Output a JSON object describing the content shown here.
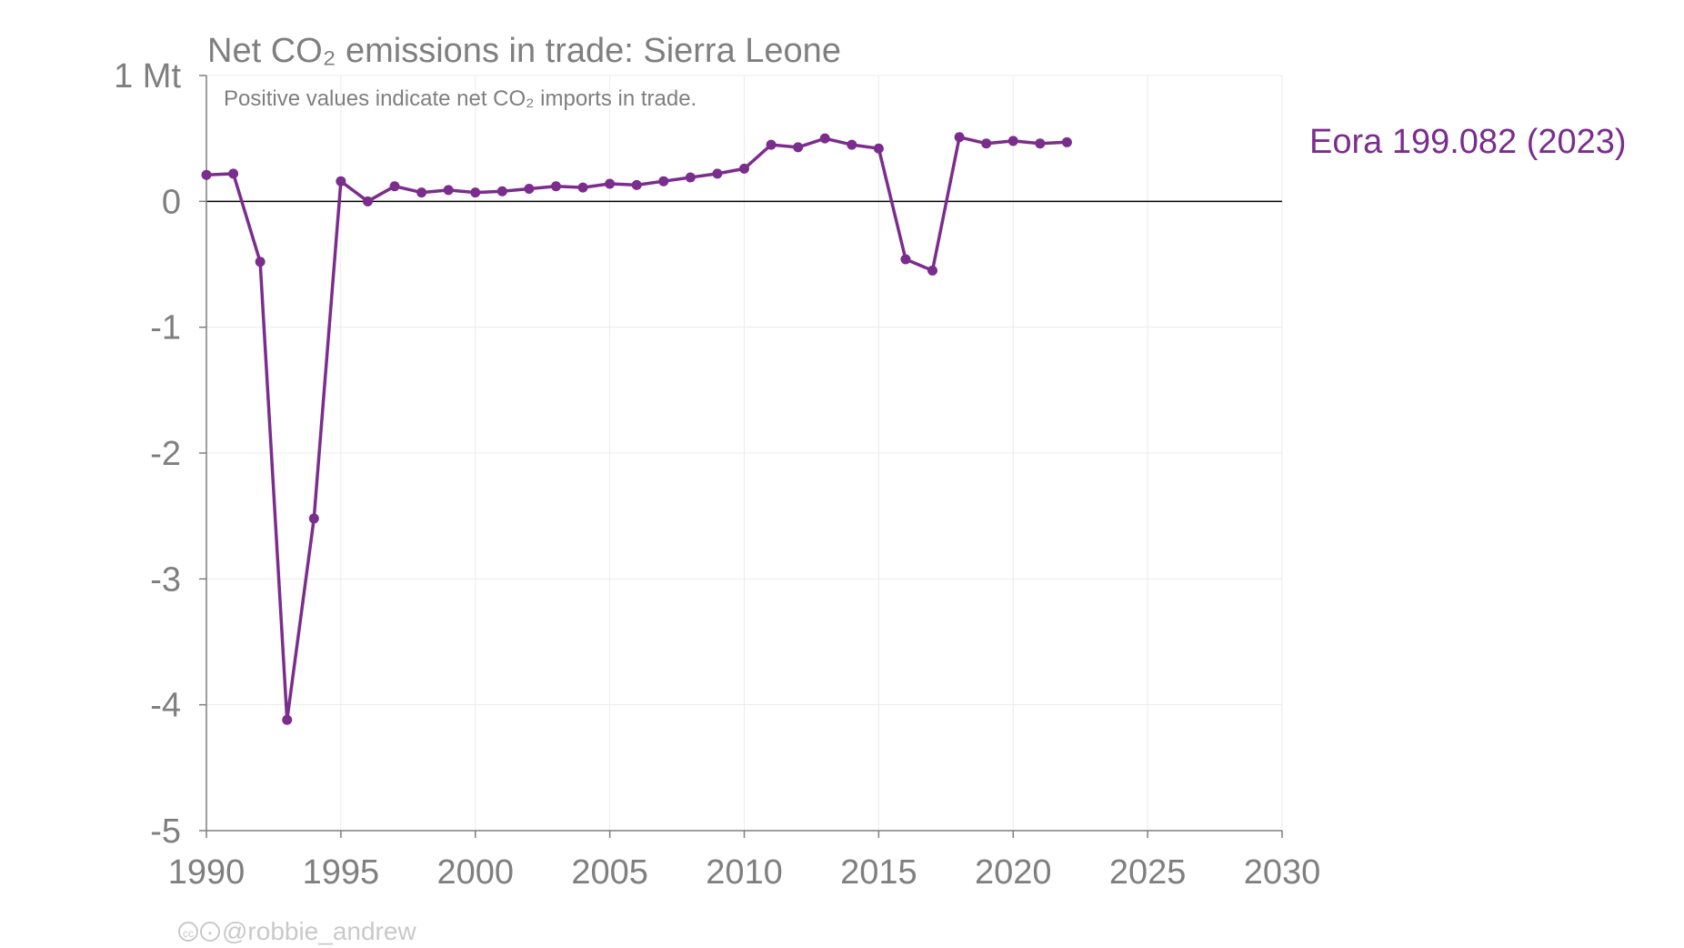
{
  "chart_data": {
    "type": "line",
    "title": "Net CO₂ emissions in trade: Sierra Leone",
    "subtitle": "Positive values indicate net CO₂ imports in trade.",
    "ylim": [
      -5,
      1
    ],
    "xlim": [
      1990,
      2030
    ],
    "y_ticks": [
      "1 Mt",
      "0",
      "-1",
      "-2",
      "-3",
      "-4",
      "-5"
    ],
    "x_ticks": [
      "1990",
      "1995",
      "2000",
      "2005",
      "2010",
      "2015",
      "2020",
      "2025",
      "2030"
    ],
    "grid": true,
    "series": [
      {
        "name": "Eora 199.082 (2023)",
        "color": "#7b2d8e",
        "x": [
          1990,
          1991,
          1992,
          1993,
          1994,
          1995,
          1996,
          1997,
          1998,
          1999,
          2000,
          2001,
          2002,
          2003,
          2004,
          2005,
          2006,
          2007,
          2008,
          2009,
          2010,
          2011,
          2012,
          2013,
          2014,
          2015,
          2016,
          2017,
          2018,
          2019,
          2020,
          2021,
          2022
        ],
        "y": [
          0.21,
          0.22,
          -0.48,
          -4.12,
          -2.52,
          0.16,
          0.0,
          0.12,
          0.07,
          0.09,
          0.07,
          0.08,
          0.1,
          0.12,
          0.11,
          0.14,
          0.13,
          0.16,
          0.19,
          0.22,
          0.26,
          0.45,
          0.43,
          0.5,
          0.45,
          0.42,
          -0.46,
          -0.55,
          0.51,
          0.46,
          0.48,
          0.46,
          0.47
        ]
      }
    ]
  },
  "credit": {
    "cc_icons": [
      "cc-icon",
      "by-icon"
    ],
    "text": "@robbie_andrew"
  }
}
